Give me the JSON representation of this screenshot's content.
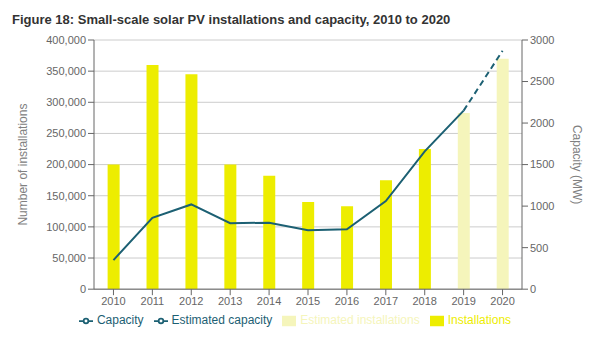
{
  "chart_data": {
    "type": "bar",
    "title": "Figure 18: Small-scale solar PV installations and capacity, 2010 to 2020",
    "categories": [
      "2010",
      "2011",
      "2012",
      "2013",
      "2014",
      "2015",
      "2016",
      "2017",
      "2018",
      "2019",
      "2020"
    ],
    "series": [
      {
        "name": "Installations",
        "type": "bar",
        "color": "#eded00",
        "values": [
          200000,
          360000,
          345000,
          200000,
          182000,
          140000,
          133000,
          175000,
          225000,
          null,
          null
        ]
      },
      {
        "name": "Estimated installations",
        "type": "bar",
        "color": "#f5f5bb",
        "values": [
          null,
          null,
          null,
          null,
          null,
          null,
          null,
          null,
          null,
          283000,
          370000
        ]
      },
      {
        "name": "Capacity",
        "type": "line",
        "color": "#1c6073",
        "axis": "y2",
        "line_style": "solid",
        "values": [
          350,
          860,
          1020,
          795,
          800,
          710,
          720,
          1060,
          1660,
          2150,
          null
        ]
      },
      {
        "name": "Estimated capacity",
        "type": "line",
        "color": "#1c6073",
        "axis": "y2",
        "line_style": "dashed",
        "values": [
          null,
          null,
          null,
          null,
          null,
          null,
          null,
          null,
          null,
          2150,
          2870
        ]
      }
    ],
    "ylabel": "Number of installations",
    "y2label": "Capacity (MW)",
    "ylim": [
      0,
      400000
    ],
    "yticks": [
      0,
      {
        "value": 50000,
        "label": "50,000"
      },
      {
        "value": 100000,
        "label": "100,000"
      },
      {
        "value": 150000,
        "label": "150,000"
      },
      {
        "value": 200000,
        "label": "200,000"
      },
      {
        "value": 250000,
        "label": "250,000"
      },
      {
        "value": 300000,
        "label": "300,000"
      },
      {
        "value": 350000,
        "label": "350,000"
      },
      {
        "value": 400000,
        "label": "400,000"
      }
    ],
    "y2lim": [
      0,
      3000
    ],
    "y2ticks": [
      0,
      500,
      1000,
      1500,
      2000,
      2500,
      3000
    ],
    "grid": true,
    "legend": "bottom"
  }
}
